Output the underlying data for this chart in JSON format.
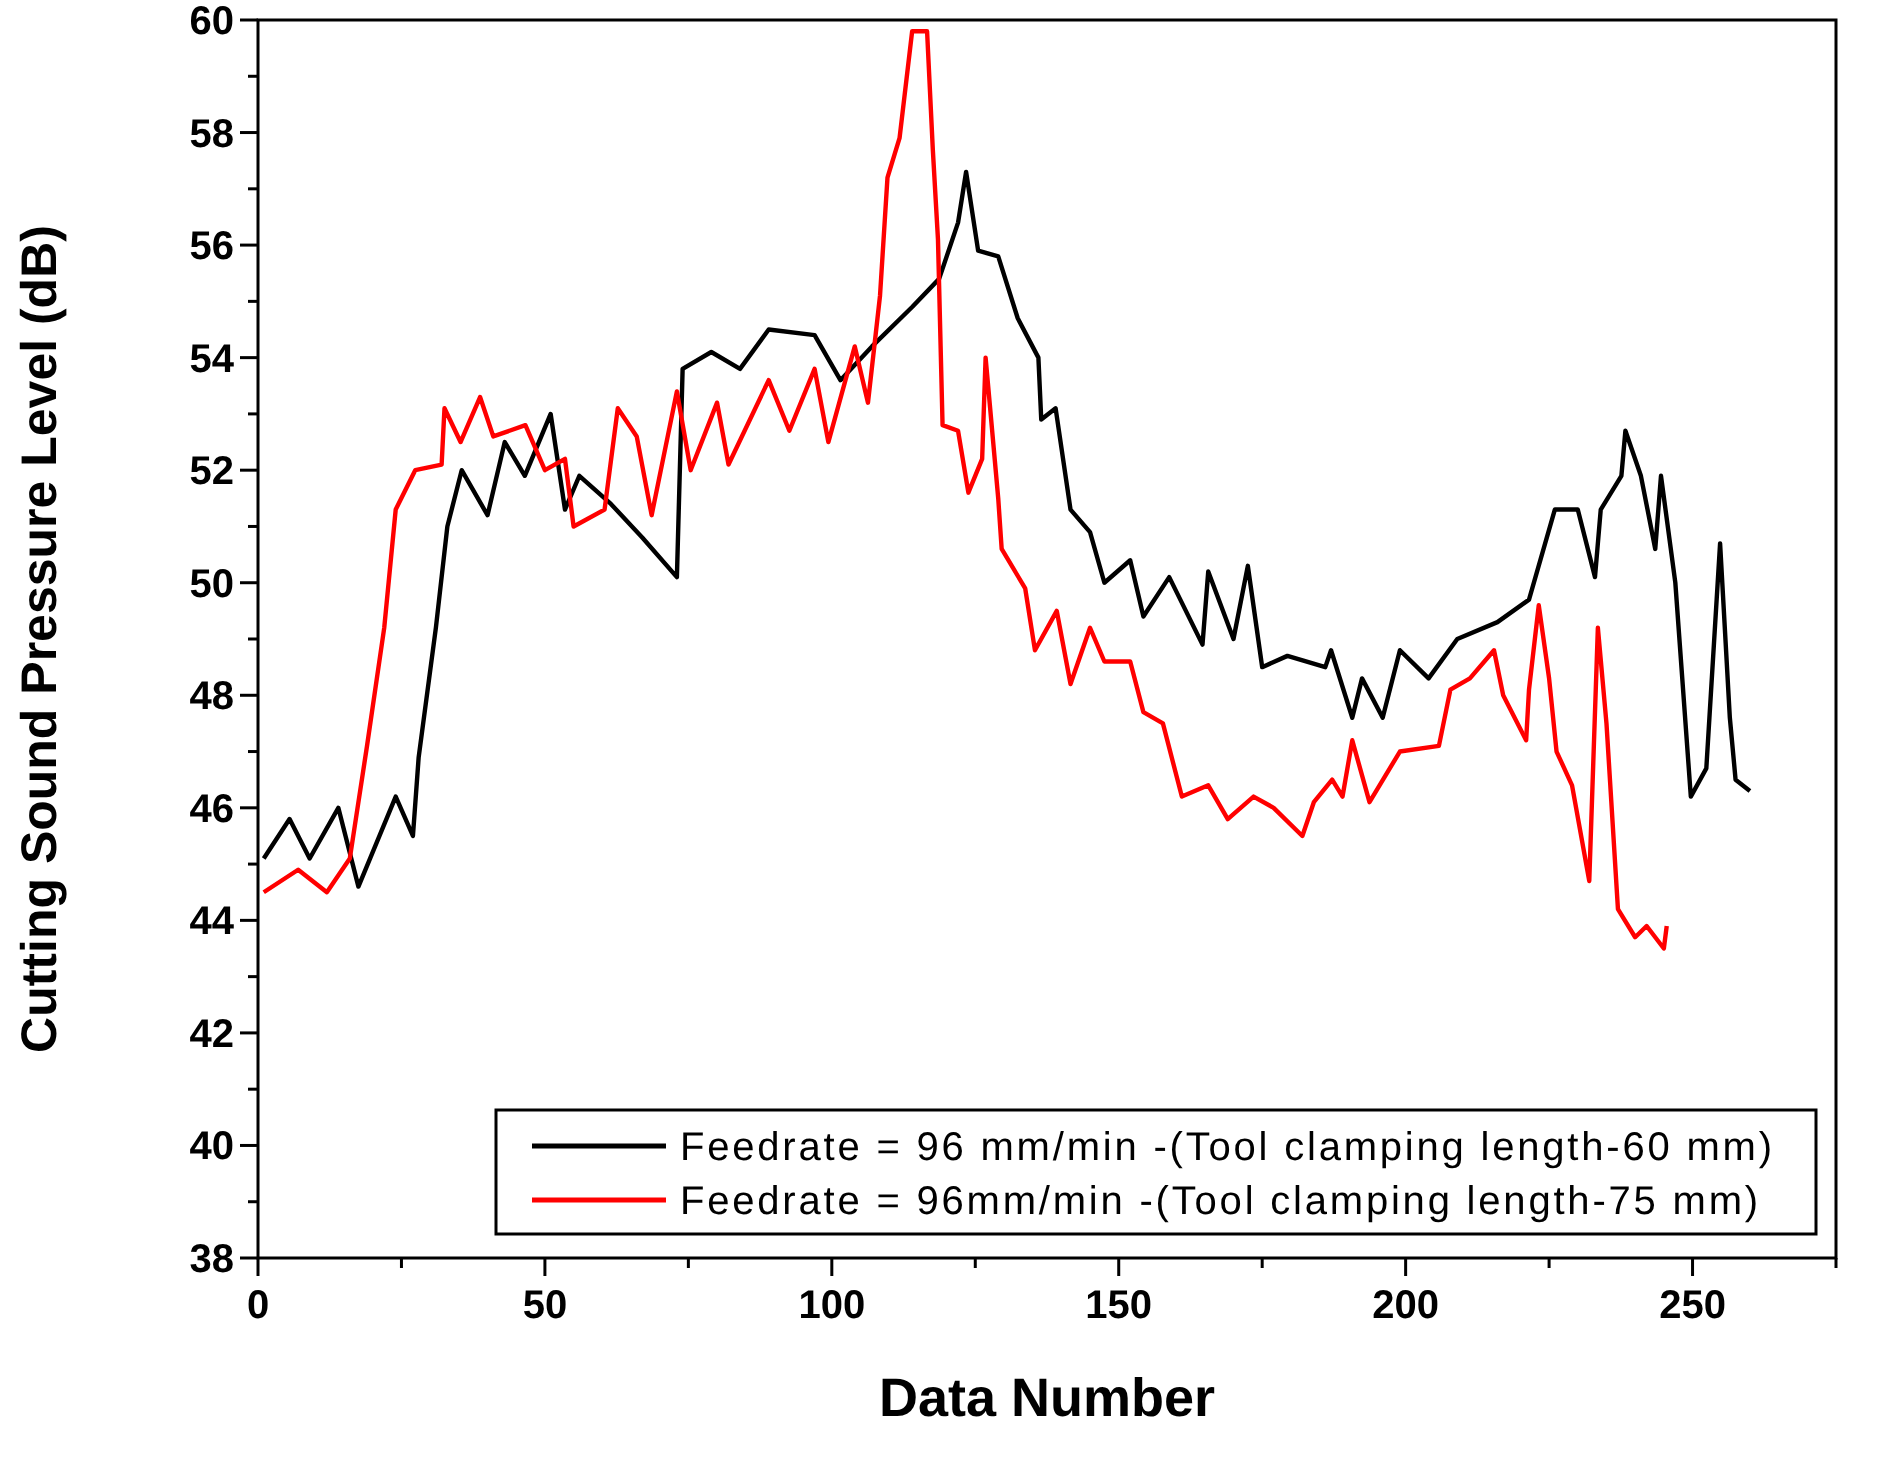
{
  "chart_data": {
    "type": "line",
    "xlabel": "Data Number",
    "ylabel": "Cutting Sound Pressure Level (dB)",
    "xlim": [
      0,
      275
    ],
    "xticks": [
      0,
      {
        "value": 25,
        "label": null
      },
      50,
      {
        "value": 75,
        "label": null
      },
      100,
      {
        "value": 125,
        "label": null
      },
      150,
      {
        "value": 175,
        "label": null
      },
      200,
      {
        "value": 225,
        "label": null
      },
      250,
      {
        "value": 275,
        "label": null
      }
    ],
    "ylim": [
      38,
      60
    ],
    "yticks": [
      38,
      {
        "value": 39,
        "label": null
      },
      40,
      {
        "value": 41,
        "label": null
      },
      42,
      {
        "value": 43,
        "label": null
      },
      44,
      {
        "value": 45,
        "label": null
      },
      46,
      {
        "value": 47,
        "label": null
      },
      48,
      {
        "value": 49,
        "label": null
      },
      50,
      {
        "value": 51,
        "label": null
      },
      52,
      {
        "value": 53,
        "label": null
      },
      54,
      {
        "value": 55,
        "label": null
      },
      56,
      {
        "value": 57,
        "label": null
      },
      58,
      {
        "value": 59,
        "label": null
      },
      60
    ],
    "grid": false,
    "legend": "bottom right",
    "line_style": "solid",
    "marker": "none",
    "series": [
      {
        "name": "Feedrate = 96 mm/min -(Tool clamping length-60 mm)",
        "color": "#000000",
        "x": [
          1,
          5.5,
          9,
          14,
          17.5,
          24,
          27,
          28,
          31,
          33,
          35.5,
          40,
          43,
          46.5,
          51,
          53.5,
          56,
          61.5,
          67,
          73,
          74,
          79,
          84,
          89,
          97,
          101.5,
          107,
          114,
          118.7,
          122,
          123.4,
          125.5,
          129,
          132.4,
          136,
          136.5,
          139,
          141.6,
          145,
          147.5,
          152,
          154.3,
          158.8,
          164.6,
          165.6,
          170,
          172.5,
          175,
          179.4,
          186,
          187,
          190.7,
          192.4,
          196,
          199,
          204,
          209,
          216,
          221.5,
          226,
          230,
          233,
          234,
          237.6,
          238.3,
          241,
          243.5,
          244.5,
          247,
          249.7,
          252.4,
          254.8,
          256.5,
          257.5,
          260
        ],
        "values": [
          45.1,
          45.8,
          45.1,
          46.0,
          44.6,
          46.2,
          45.5,
          46.9,
          49.2,
          51.0,
          52.0,
          51.2,
          52.5,
          51.9,
          53.0,
          51.3,
          51.9,
          51.4,
          50.8,
          50.1,
          53.8,
          54.1,
          53.8,
          54.5,
          54.4,
          53.6,
          54.2,
          54.9,
          55.4,
          56.4,
          57.3,
          55.9,
          55.8,
          54.7,
          54.0,
          52.9,
          53.1,
          51.3,
          50.9,
          50.0,
          50.4,
          49.4,
          50.1,
          48.9,
          50.2,
          49.0,
          50.3,
          48.5,
          48.7,
          48.5,
          48.8,
          47.6,
          48.3,
          47.6,
          48.8,
          48.3,
          49.0,
          49.3,
          49.7,
          51.3,
          51.3,
          50.1,
          51.3,
          51.9,
          52.7,
          51.9,
          50.6,
          51.9,
          50.0,
          46.2,
          46.7,
          50.7,
          47.6,
          46.5,
          46.3
        ]
      },
      {
        "name": "Feedrate = 96mm/min -(Tool clamping length-75 mm)",
        "color": "#ff0000",
        "x": [
          1,
          7,
          12,
          16,
          19,
          22,
          24,
          27.4,
          32,
          32.5,
          35.3,
          38.7,
          41,
          46.6,
          50,
          53.5,
          55,
          60.4,
          62.7,
          66,
          68.6,
          73,
          75.4,
          80,
          82,
          89,
          92.6,
          97,
          99.4,
          104,
          106.3,
          108.4,
          109.7,
          111.8,
          114,
          116.6,
          117.6,
          118.5,
          119.3,
          122,
          123.8,
          126.2,
          126.8,
          129,
          129.6,
          133.7,
          135.4,
          139.2,
          141.6,
          145,
          147.5,
          152,
          154.3,
          157.7,
          161,
          165.6,
          169,
          173.5,
          177,
          182,
          184,
          187.2,
          189,
          190.7,
          193.7,
          199,
          205.8,
          207.8,
          211.2,
          215.4,
          217,
          221,
          221.5,
          223.2,
          225,
          226.3,
          229,
          232,
          233.5,
          235,
          237,
          240,
          242,
          245,
          245.5
        ],
        "values": [
          44.5,
          44.9,
          44.5,
          45.1,
          47.1,
          49.2,
          51.3,
          52.0,
          52.1,
          53.1,
          52.5,
          53.3,
          52.6,
          52.8,
          52.0,
          52.2,
          51.0,
          51.3,
          53.1,
          52.6,
          51.2,
          53.4,
          52.0,
          53.2,
          52.1,
          53.6,
          52.7,
          53.8,
          52.5,
          54.2,
          53.2,
          55.1,
          57.2,
          57.9,
          59.8,
          59.8,
          57.7,
          56.1,
          52.8,
          52.7,
          51.6,
          52.2,
          54.0,
          51.5,
          50.6,
          49.9,
          48.8,
          49.5,
          48.2,
          49.2,
          48.6,
          48.6,
          47.7,
          47.5,
          46.2,
          46.4,
          45.8,
          46.2,
          46.0,
          45.5,
          46.1,
          46.5,
          46.2,
          47.2,
          46.1,
          47.0,
          47.1,
          48.1,
          48.3,
          48.8,
          48.0,
          47.2,
          48.1,
          49.6,
          48.3,
          47.0,
          46.4,
          44.7,
          49.2,
          47.5,
          44.2,
          43.7,
          43.9,
          43.5,
          43.9
        ]
      }
    ]
  }
}
